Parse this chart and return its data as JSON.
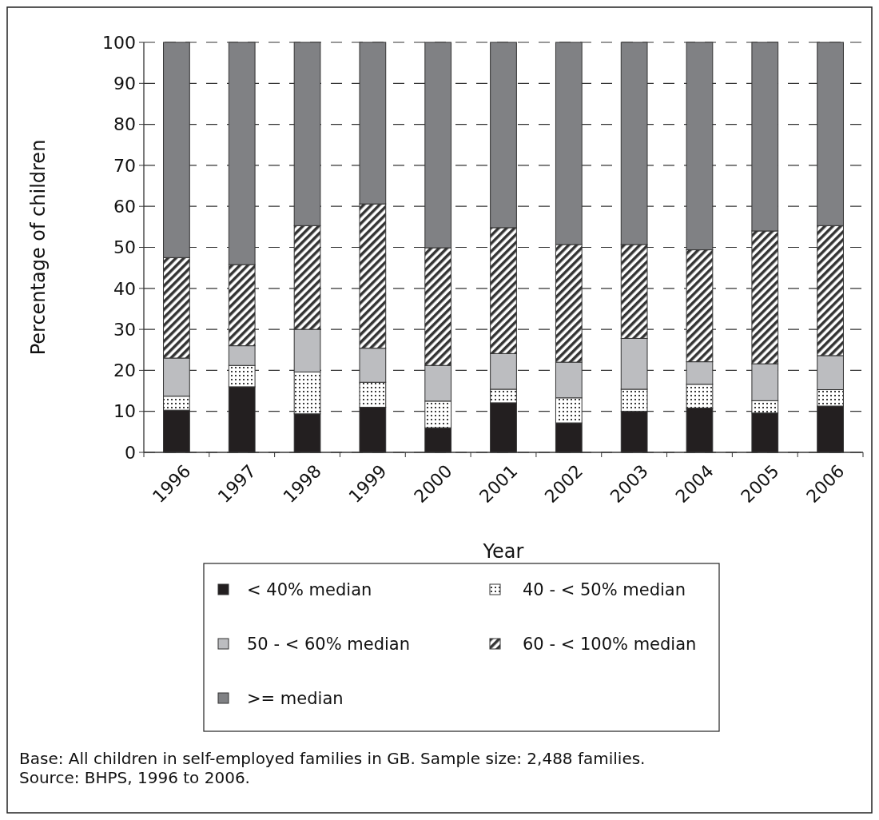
{
  "chart_data": {
    "type": "bar",
    "stacked": true,
    "xlabel": "Year",
    "ylabel": "Percentage of children",
    "categories": [
      "1996",
      "1997",
      "1998",
      "1999",
      "2000",
      "2001",
      "2002",
      "2003",
      "2004",
      "2005",
      "2006"
    ],
    "series": [
      {
        "name": "< 40% median",
        "color": "#231f20",
        "values": [
          10.3,
          16,
          9.4,
          11,
          6,
          12.1,
          7.2,
          10,
          10.8,
          9.6,
          11.3
        ]
      },
      {
        "name": "40 - < 50% median",
        "color": "#3a3a3a",
        "values": [
          3.4,
          5.2,
          10.2,
          6.1,
          6.5,
          3.3,
          6.1,
          5.4,
          5.8,
          3,
          4
        ]
      },
      {
        "name": "50 - < 60% median",
        "color": "#bcbdc0",
        "values": [
          9.3,
          4.8,
          10.4,
          8.3,
          8.7,
          8.7,
          8.7,
          12.4,
          5.5,
          9,
          8.3
        ]
      },
      {
        "name": "60 - < 100% median",
        "color": "#333333",
        "values": [
          24.5,
          19.8,
          25.3,
          35.2,
          28.7,
          30.7,
          28.7,
          22.9,
          27.3,
          32.4,
          31.7
        ]
      },
      {
        "name": ">= median",
        "color": "#808184",
        "values": [
          52.5,
          54.2,
          44.7,
          39.4,
          50.1,
          45.2,
          49.3,
          49.3,
          50.6,
          46,
          44.7
        ]
      }
    ],
    "ylim": [
      0,
      100
    ],
    "yticks": [
      0,
      10,
      20,
      30,
      40,
      50,
      60,
      70,
      80,
      90,
      100
    ],
    "grid": "y",
    "legend": "bottom",
    "annotations": [
      "Base: All children in self-employed families in GB. Sample size: 2,488 families.",
      "Source: BHPS, 1996 to 2006."
    ]
  }
}
